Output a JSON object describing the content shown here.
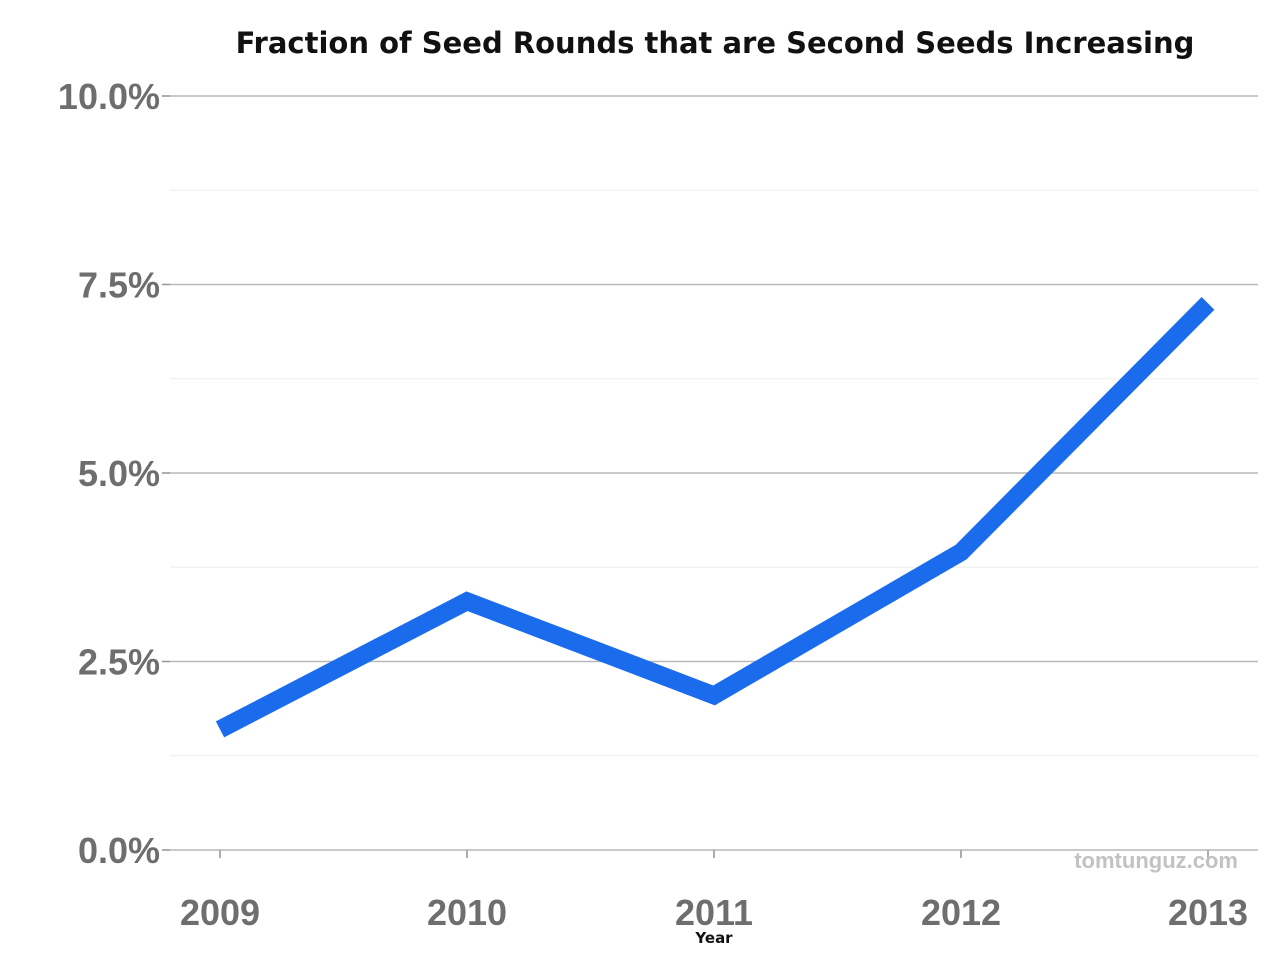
{
  "chart_data": {
    "type": "line",
    "title": "Fraction of Seed Rounds that are Second Seeds Increasing",
    "xlabel": "Year",
    "ylabel": "",
    "x": [
      "2009",
      "2010",
      "2011",
      "2012",
      "2013"
    ],
    "series": [
      {
        "values": [
          1.6,
          3.3,
          2.05,
          3.95,
          7.25
        ],
        "color": "#1a6ced"
      }
    ],
    "ylim": [
      0,
      10
    ],
    "yticks": [
      0,
      2.5,
      5,
      7.5,
      10
    ],
    "ytick_labels": [
      "0.0%",
      "2.5%",
      "5.0%",
      "7.5%",
      "10.0%"
    ],
    "grid": true,
    "legend": "none"
  },
  "watermark": "tomtunguz.com"
}
